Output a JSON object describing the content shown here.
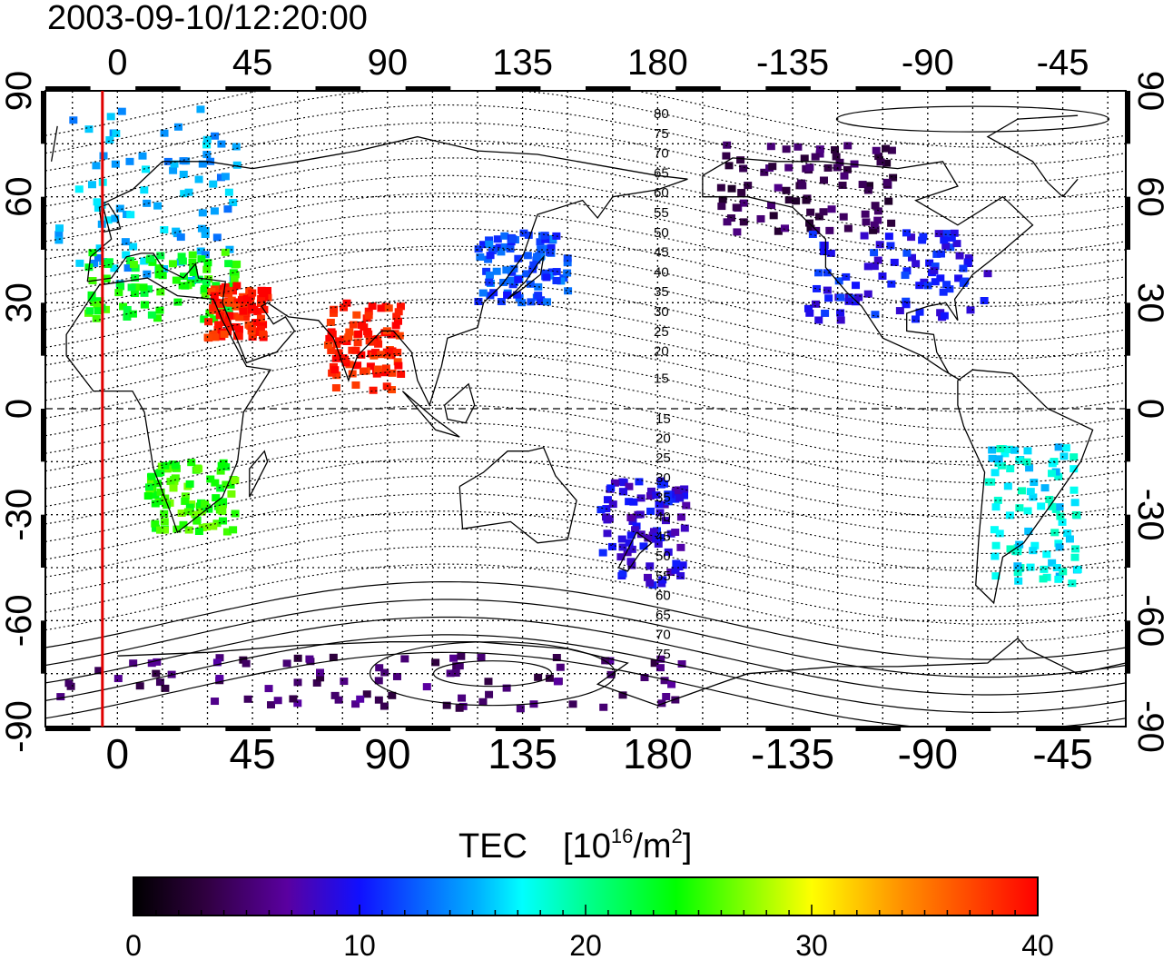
{
  "timestamp": "2003-09-10/12:20:00",
  "colorbar": {
    "title": "TEC",
    "unit_prefix": "[10",
    "unit_exp1": "16",
    "unit_mid": "/m",
    "unit_exp2": "2",
    "unit_suffix": "]",
    "min": 0,
    "max": 40,
    "ticks": [
      "0",
      "10",
      "20",
      "30",
      "40"
    ]
  },
  "axes": {
    "lon_ticks": [
      "0",
      "45",
      "90",
      "135",
      "180",
      "-135",
      "-90",
      "-45"
    ],
    "lat_ticks": [
      "90",
      "60",
      "30",
      "0",
      "-30",
      "-60",
      "-90"
    ]
  },
  "contour_labels": {
    "north": [
      "80",
      "75",
      "70",
      "65",
      "60",
      "55",
      "50",
      "45",
      "40",
      "35",
      "30",
      "25",
      "20",
      "15"
    ],
    "south": [
      "15",
      "20",
      "25",
      "30",
      "35",
      "40",
      "45",
      "50",
      "55",
      "60",
      "65",
      "70",
      "75"
    ]
  },
  "meridian_marker": {
    "lon": -5,
    "color": "#e00000"
  },
  "chart_data": {
    "type": "heatmap",
    "title": "2003-09-10/12:20:00",
    "xlabel": "",
    "ylabel": "",
    "xlim": [
      -24,
      336
    ],
    "ylim": [
      -90,
      90
    ],
    "colorbar_label": "TEC [10^16/m^2]",
    "value_range": [
      0,
      40
    ],
    "regions": [
      {
        "lon_range": [
          -20,
          40
        ],
        "lat_range": [
          35,
          85
        ],
        "tec": 15
      },
      {
        "lon_range": [
          -10,
          40
        ],
        "lat_range": [
          25,
          45
        ],
        "tec": 24
      },
      {
        "lon_range": [
          30,
          50
        ],
        "lat_range": [
          20,
          35
        ],
        "tec": 39
      },
      {
        "lon_range": [
          70,
          95
        ],
        "lat_range": [
          5,
          30
        ],
        "tec": 39
      },
      {
        "lon_range": [
          10,
          40
        ],
        "lat_range": [
          -35,
          -15
        ],
        "tec": 25
      },
      {
        "lon_range": [
          120,
          150
        ],
        "lat_range": [
          30,
          50
        ],
        "tec": 12
      },
      {
        "lon_range": [
          200,
          260
        ],
        "lat_range": [
          50,
          75
        ],
        "tec": 4
      },
      {
        "lon_range": [
          230,
          290
        ],
        "lat_range": [
          25,
          50
        ],
        "tec": 10
      },
      {
        "lon_range": [
          290,
          320
        ],
        "lat_range": [
          -50,
          -10
        ],
        "tec": 17
      },
      {
        "lon_range": [
          160,
          190
        ],
        "lat_range": [
          -50,
          -20
        ],
        "tec": 9
      },
      {
        "lon_range": [
          -20,
          190
        ],
        "lat_range": [
          -85,
          -70
        ],
        "tec": 5
      }
    ]
  }
}
